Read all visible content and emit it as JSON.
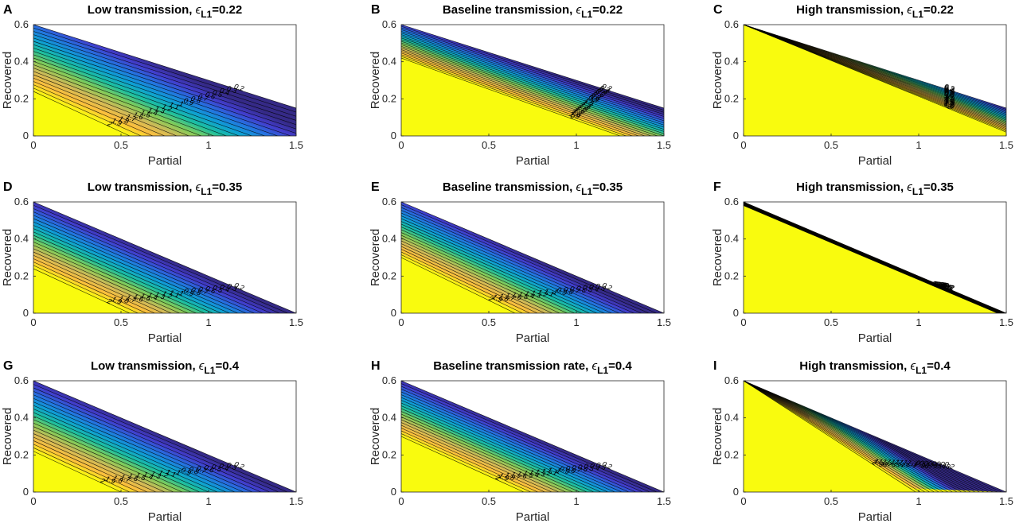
{
  "chart_data": [
    {
      "letter": "A",
      "title_main": "Low transmission, ",
      "title_eps": "ϵ",
      "title_sub": "L1",
      "title_value": "=0.22",
      "type": "heatmap",
      "xlabel": "Partial",
      "ylabel": "Recovered",
      "xlim": [
        0,
        1.5
      ],
      "ylim": [
        0,
        0.6
      ],
      "xticks": [
        "0",
        "0.5",
        "1",
        "1.5"
      ],
      "yticks": [
        "0",
        "0.2",
        "0.4",
        "0.6"
      ],
      "feasible_boundary": [
        [
          0,
          0.6
        ],
        [
          1.5,
          0.15
        ]
      ],
      "saturation_boundary": [
        [
          0,
          0.24
        ],
        [
          0.55,
          0
        ]
      ],
      "contour_levels": [
        "2",
        "1.9",
        "1.8",
        "1.7",
        "1.6",
        "1.5",
        "1.4",
        "1.3",
        "1.2",
        "1.1",
        "1",
        "0.9",
        "0.8",
        "0.7",
        "0.6",
        "0.5",
        "0.4",
        "0.3",
        "0.2"
      ],
      "colormap": [
        "#f9fb0e",
        "#fdbf3c",
        "#d0ba58",
        "#81cc59",
        "#1cbfa0",
        "#0e9fd4",
        "#2473e1",
        "#423dcd",
        "#352a87"
      ]
    },
    {
      "letter": "B",
      "title_main": "Baseline transmission, ",
      "title_eps": "ϵ",
      "title_sub": "L1",
      "title_value": "=0.22",
      "type": "heatmap",
      "xlabel": "Partial",
      "ylabel": "Recovered",
      "xlim": [
        0,
        1.5
      ],
      "ylim": [
        0,
        0.6
      ],
      "xticks": [
        "0",
        "0.5",
        "1",
        "1.5"
      ],
      "yticks": [
        "0",
        "0.2",
        "0.4",
        "0.6"
      ],
      "feasible_boundary": [
        [
          0,
          0.6
        ],
        [
          1.5,
          0.15
        ]
      ],
      "saturation_boundary": [
        [
          0,
          0.42
        ],
        [
          1.25,
          0
        ]
      ],
      "contour_levels": [
        "2",
        "1.9",
        "1.8",
        "1.7",
        "1.6",
        "1.5",
        "1.4",
        "1.3",
        "1.2",
        "1.1",
        "1",
        "0.9",
        "0.8",
        "0.7",
        "0.6",
        "0.5",
        "0.4",
        "0.3",
        "0.2"
      ],
      "colormap": [
        "#f9fb0e",
        "#fdbf3c",
        "#d0ba58",
        "#81cc59",
        "#1cbfa0",
        "#0e9fd4",
        "#2473e1",
        "#423dcd",
        "#352a87"
      ]
    },
    {
      "letter": "C",
      "title_main": "High transmission, ",
      "title_eps": "ϵ",
      "title_sub": "L1",
      "title_value": "=0.22",
      "type": "heatmap",
      "xlabel": "Partial",
      "ylabel": "Recovered",
      "xlim": [
        0,
        1.5
      ],
      "ylim": [
        0,
        0.6
      ],
      "xticks": [
        "0",
        "0.5",
        "1",
        "1.5"
      ],
      "yticks": [
        "0",
        "0.2",
        "0.4",
        "0.6"
      ],
      "feasible_boundary": [
        [
          0,
          0.6
        ],
        [
          1.5,
          0.15
        ]
      ],
      "saturation_boundary": [
        [
          0,
          0.6
        ],
        [
          1.5,
          0.02
        ]
      ],
      "contour_levels": [
        "2",
        "1.9",
        "1.8",
        "1.7",
        "1.6",
        "1.5",
        "1.4",
        "1.3",
        "1.2",
        "1.1",
        "1",
        "0.9",
        "0.8",
        "0.7",
        "0.6",
        "0.5",
        "0.4",
        "0.3",
        "0.2"
      ],
      "colormap": [
        "#f9fb0e",
        "#fdbf3c",
        "#d0ba58",
        "#81cc59",
        "#1cbfa0",
        "#0e9fd4",
        "#2473e1",
        "#423dcd",
        "#352a87"
      ]
    },
    {
      "letter": "D",
      "title_main": "Low transmission, ",
      "title_eps": "ϵ",
      "title_sub": "L1",
      "title_value": "=0.35",
      "type": "heatmap",
      "xlabel": "Partial",
      "ylabel": "Recovered",
      "xlim": [
        0,
        1.5
      ],
      "ylim": [
        0,
        0.6
      ],
      "xticks": [
        "0",
        "0.5",
        "1",
        "1.5"
      ],
      "yticks": [
        "0",
        "0.2",
        "0.4",
        "0.6"
      ],
      "feasible_boundary": [
        [
          0,
          0.6
        ],
        [
          1.5,
          0.0
        ]
      ],
      "saturation_boundary": [
        [
          0,
          0.24
        ],
        [
          0.55,
          0
        ]
      ],
      "contour_levels": [
        "2",
        "1.9",
        "1.8",
        "1.7",
        "1.6",
        "1.5",
        "1.4",
        "1.3",
        "1.2",
        "1.1",
        "1",
        "0.9",
        "0.8",
        "0.7",
        "0.6",
        "0.5",
        "0.4",
        "0.3",
        "0.2"
      ],
      "colormap": [
        "#f9fb0e",
        "#fdbf3c",
        "#d0ba58",
        "#81cc59",
        "#1cbfa0",
        "#0e9fd4",
        "#2473e1",
        "#423dcd",
        "#352a87"
      ]
    },
    {
      "letter": "E",
      "title_main": "Baseline transmission, ",
      "title_eps": "ϵ",
      "title_sub": "L1",
      "title_value": "=0.35",
      "type": "heatmap",
      "xlabel": "Partial",
      "ylabel": "Recovered",
      "xlim": [
        0,
        1.5
      ],
      "ylim": [
        0,
        0.6
      ],
      "xticks": [
        "0",
        "0.5",
        "1",
        "1.5"
      ],
      "yticks": [
        "0",
        "0.2",
        "0.4",
        "0.6"
      ],
      "feasible_boundary": [
        [
          0,
          0.6
        ],
        [
          1.5,
          0.0
        ]
      ],
      "saturation_boundary": [
        [
          0,
          0.3
        ],
        [
          0.65,
          0
        ]
      ],
      "contour_levels": [
        "2",
        "1.9",
        "1.8",
        "1.7",
        "1.6",
        "1.5",
        "1.4",
        "1.3",
        "1.2",
        "1.1",
        "1",
        "0.9",
        "0.8",
        "0.7",
        "0.6",
        "0.5",
        "0.4",
        "0.3",
        "0.2"
      ],
      "colormap": [
        "#f9fb0e",
        "#fdbf3c",
        "#d0ba58",
        "#81cc59",
        "#1cbfa0",
        "#0e9fd4",
        "#2473e1",
        "#423dcd",
        "#352a87"
      ]
    },
    {
      "letter": "F",
      "title_main": "High transmission, ",
      "title_eps": "ϵ",
      "title_sub": "L1",
      "title_value": "=0.35",
      "type": "heatmap",
      "xlabel": "Partial",
      "ylabel": "Recovered",
      "xlim": [
        0,
        1.5
      ],
      "ylim": [
        0,
        0.6
      ],
      "xticks": [
        "0",
        "0.5",
        "1",
        "1.5"
      ],
      "yticks": [
        "0",
        "0.2",
        "0.4",
        "0.6"
      ],
      "feasible_boundary": [
        [
          0,
          0.6
        ],
        [
          1.5,
          0.0
        ]
      ],
      "saturation_boundary": [
        [
          0,
          0.58
        ],
        [
          1.4,
          0.02
        ]
      ],
      "contour_levels": [
        "2",
        "1.9",
        "1.8",
        "1.7",
        "1.6",
        "1.5",
        "1.4",
        "1.3",
        "1.2",
        "1.1",
        "1",
        "0.9",
        "0.8",
        "0.7",
        "0.6",
        "0.5",
        "0.4",
        "0.3",
        "0.2"
      ],
      "colormap": [
        "#f9fb0e",
        "#fdbf3c",
        "#d0ba58",
        "#81cc59",
        "#1cbfa0",
        "#0e9fd4",
        "#2473e1",
        "#423dcd",
        "#352a87"
      ]
    },
    {
      "letter": "G",
      "title_main": "Low transmission, ",
      "title_eps": "ϵ",
      "title_sub": "L1",
      "title_value": "=0.4",
      "type": "heatmap",
      "xlabel": "Partial",
      "ylabel": "Recovered",
      "xlim": [
        0,
        1.5
      ],
      "ylim": [
        0,
        0.6
      ],
      "xticks": [
        "0",
        "0.5",
        "1",
        "1.5"
      ],
      "yticks": [
        "0",
        "0.2",
        "0.4",
        "0.6"
      ],
      "feasible_boundary": [
        [
          0,
          0.6
        ],
        [
          1.5,
          0.0
        ]
      ],
      "saturation_boundary": [
        [
          0,
          0.22
        ],
        [
          0.5,
          0
        ]
      ],
      "contour_levels": [
        "2",
        "1.9",
        "1.8",
        "1.7",
        "1.6",
        "1.5",
        "1.4",
        "1.3",
        "1.2",
        "1.1",
        "1",
        "0.9",
        "0.8",
        "0.7",
        "0.6",
        "0.5",
        "0.4",
        "0.3",
        "0.2"
      ],
      "colormap": [
        "#f9fb0e",
        "#fdbf3c",
        "#d0ba58",
        "#81cc59",
        "#1cbfa0",
        "#0e9fd4",
        "#2473e1",
        "#423dcd",
        "#352a87"
      ]
    },
    {
      "letter": "H",
      "title_main": "Baseline transmission rate, ",
      "title_eps": "ϵ",
      "title_sub": "L1",
      "title_value": "=0.4",
      "type": "heatmap",
      "xlabel": "Partial",
      "ylabel": "Recovered",
      "xlim": [
        0,
        1.5
      ],
      "ylim": [
        0,
        0.6
      ],
      "xticks": [
        "0",
        "0.5",
        "1",
        "1.5"
      ],
      "yticks": [
        "0",
        "0.2",
        "0.4",
        "0.6"
      ],
      "feasible_boundary": [
        [
          0,
          0.6
        ],
        [
          1.5,
          0.0
        ]
      ],
      "saturation_boundary": [
        [
          0,
          0.3
        ],
        [
          0.7,
          0
        ]
      ],
      "contour_levels": [
        "2",
        "1.9",
        "1.8",
        "1.7",
        "1.6",
        "1.5",
        "1.4",
        "1.3",
        "1.2",
        "1.1",
        "1",
        "0.9",
        "0.8",
        "0.7",
        "0.6",
        "0.5",
        "0.4",
        "0.3",
        "0.2"
      ],
      "colormap": [
        "#f9fb0e",
        "#fdbf3c",
        "#d0ba58",
        "#81cc59",
        "#1cbfa0",
        "#0e9fd4",
        "#2473e1",
        "#423dcd",
        "#352a87"
      ]
    },
    {
      "letter": "I",
      "title_main": "High transmission, ",
      "title_eps": "ϵ",
      "title_sub": "L1",
      "title_value": "=0.4",
      "type": "heatmap",
      "xlabel": "Partial",
      "ylabel": "Recovered",
      "xlim": [
        0,
        1.5
      ],
      "ylim": [
        0,
        0.6
      ],
      "xticks": [
        "0",
        "0.5",
        "1",
        "1.5"
      ],
      "yticks": [
        "0",
        "0.2",
        "0.4",
        "0.6"
      ],
      "feasible_boundary": [
        [
          0,
          0.6
        ],
        [
          1.5,
          0.0
        ]
      ],
      "saturation_boundary": [
        [
          0,
          0.6
        ],
        [
          0.95,
          0.02
        ]
      ],
      "contour_levels": [
        "2",
        "1.9",
        "1.8",
        "1.7",
        "1.6",
        "1.5",
        "1.4",
        "1.3",
        "1.2",
        "1.1",
        "1",
        "0.9",
        "0.8",
        "0.7",
        "0.6",
        "0.5",
        "0.4",
        "0.3",
        "0.2"
      ],
      "colormap": [
        "#f9fb0e",
        "#fdbf3c",
        "#d0ba58",
        "#81cc59",
        "#1cbfa0",
        "#0e9fd4",
        "#2473e1",
        "#423dcd",
        "#352a87"
      ]
    }
  ]
}
